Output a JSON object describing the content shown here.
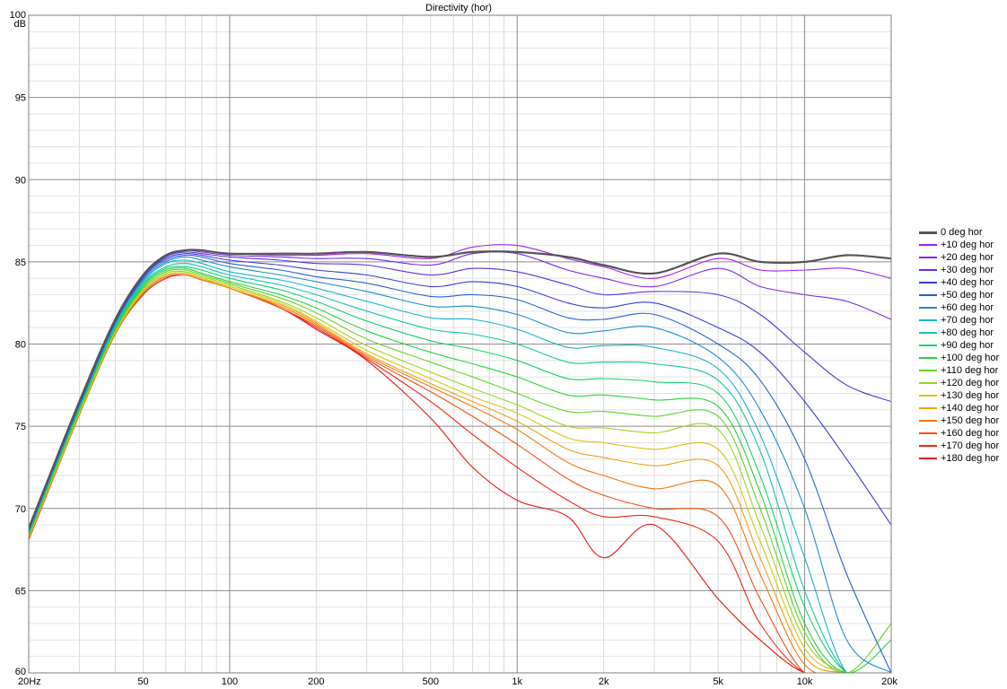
{
  "chart_data": {
    "type": "line",
    "title": "Directivity (hor)",
    "ylabel": "dB",
    "xlabel": "",
    "x_scale": "log",
    "xlim": [
      20,
      20000
    ],
    "ylim": [
      60,
      100
    ],
    "grid": true,
    "legend_position": "right",
    "x_ticks": [
      {
        "value": 20,
        "label": "20Hz"
      },
      {
        "value": 50,
        "label": "50"
      },
      {
        "value": 100,
        "label": "100"
      },
      {
        "value": 200,
        "label": "200"
      },
      {
        "value": 500,
        "label": "500"
      },
      {
        "value": 1000,
        "label": "1k"
      },
      {
        "value": 2000,
        "label": "2k"
      },
      {
        "value": 5000,
        "label": "5k"
      },
      {
        "value": 10000,
        "label": "10k"
      },
      {
        "value": 20000,
        "label": "20k"
      }
    ],
    "y_ticks": [
      {
        "value": 100,
        "label": "100"
      },
      {
        "value": 95,
        "label": "95"
      },
      {
        "value": 90,
        "label": "90"
      },
      {
        "value": 85,
        "label": "85"
      },
      {
        "value": 80,
        "label": "80"
      },
      {
        "value": 75,
        "label": "75"
      },
      {
        "value": 70,
        "label": "70"
      },
      {
        "value": 65,
        "label": "65"
      },
      {
        "value": 60,
        "label": "60"
      }
    ],
    "x": [
      20,
      30,
      40,
      50,
      60,
      70,
      80,
      100,
      150,
      200,
      300,
      500,
      700,
      1000,
      1500,
      2000,
      3000,
      5000,
      7000,
      10000,
      14000,
      20000
    ],
    "series": [
      {
        "name": "0 deg hor",
        "color": "#555555",
        "values": [
          68.8,
          76.5,
          81.5,
          84.2,
          85.4,
          85.7,
          85.7,
          85.5,
          85.5,
          85.5,
          85.6,
          85.3,
          85.6,
          85.6,
          85.3,
          84.8,
          84.3,
          85.5,
          85.0,
          85.0,
          85.4,
          85.2
        ]
      },
      {
        "name": "+10 deg hor",
        "color": "#a020f0",
        "values": [
          68.8,
          76.5,
          81.5,
          84.2,
          85.4,
          85.7,
          85.7,
          85.5,
          85.4,
          85.4,
          85.5,
          85.2,
          85.9,
          86.0,
          85.2,
          84.7,
          84.0,
          85.2,
          84.5,
          84.5,
          84.6,
          84.0
        ]
      },
      {
        "name": "+20 deg hor",
        "color": "#7d28e6",
        "values": [
          68.8,
          76.5,
          81.5,
          84.2,
          85.4,
          85.7,
          85.6,
          85.4,
          85.3,
          85.2,
          85.2,
          84.8,
          85.5,
          85.5,
          84.5,
          84.0,
          83.5,
          84.6,
          83.5,
          83.0,
          82.6,
          81.5
        ]
      },
      {
        "name": "+30 deg hor",
        "color": "#5a32dc",
        "values": [
          68.7,
          76.4,
          81.4,
          84.1,
          85.3,
          85.6,
          85.5,
          85.3,
          85.1,
          84.9,
          84.8,
          84.2,
          84.6,
          84.4,
          83.6,
          83.0,
          83.2,
          83.0,
          81.8,
          79.5,
          77.5,
          76.5
        ]
      },
      {
        "name": "+40 deg hor",
        "color": "#3a3cd2",
        "values": [
          68.7,
          76.4,
          81.4,
          84.1,
          85.2,
          85.5,
          85.4,
          85.1,
          84.8,
          84.5,
          84.2,
          83.5,
          83.8,
          83.5,
          82.5,
          82.2,
          82.5,
          81.0,
          79.5,
          76.5,
          73.0,
          69.0
        ]
      },
      {
        "name": "+50 deg hor",
        "color": "#2860d0",
        "values": [
          68.7,
          76.3,
          81.3,
          84.0,
          85.1,
          85.4,
          85.3,
          84.9,
          84.5,
          84.1,
          83.7,
          82.9,
          83.0,
          82.7,
          81.6,
          81.5,
          81.8,
          80.0,
          77.8,
          73.0,
          66.0,
          60.0
        ]
      },
      {
        "name": "+60 deg hor",
        "color": "#1e8cd0",
        "values": [
          68.6,
          76.3,
          81.3,
          83.9,
          85.0,
          85.3,
          85.1,
          84.7,
          84.2,
          83.8,
          83.2,
          82.3,
          82.3,
          81.8,
          80.7,
          80.8,
          81.0,
          79.2,
          76.0,
          70.0,
          62.0,
          60.0
        ]
      },
      {
        "name": "+70 deg hor",
        "color": "#14b4c8",
        "values": [
          68.6,
          76.2,
          81.2,
          83.8,
          84.9,
          85.1,
          84.9,
          84.4,
          83.9,
          83.4,
          82.6,
          81.6,
          81.5,
          80.9,
          79.8,
          79.9,
          79.8,
          78.5,
          74.5,
          67.0,
          60.0,
          60.0
        ]
      },
      {
        "name": "+80 deg hor",
        "color": "#14c8a0",
        "values": [
          68.5,
          76.2,
          81.1,
          83.7,
          84.7,
          84.9,
          84.7,
          84.2,
          83.6,
          83.0,
          82.0,
          80.9,
          80.6,
          80.0,
          78.9,
          78.9,
          78.8,
          77.8,
          73.5,
          65.0,
          60.0,
          60.0
        ]
      },
      {
        "name": "+90 deg hor",
        "color": "#14d26e",
        "values": [
          68.5,
          76.1,
          81.0,
          83.6,
          84.6,
          84.7,
          84.5,
          84.0,
          83.3,
          82.6,
          81.4,
          80.2,
          79.7,
          79.0,
          77.9,
          77.9,
          77.7,
          77.0,
          72.0,
          64.0,
          60.0,
          60.0
        ]
      },
      {
        "name": "+100 deg hor",
        "color": "#28d23c",
        "values": [
          68.4,
          76.0,
          80.9,
          83.5,
          84.5,
          84.6,
          84.3,
          83.8,
          83.0,
          82.2,
          80.8,
          79.5,
          78.8,
          78.0,
          76.9,
          76.9,
          76.6,
          76.2,
          71.0,
          63.0,
          60.0,
          62.0
        ]
      },
      {
        "name": "+110 deg hor",
        "color": "#64d228",
        "values": [
          68.4,
          76.0,
          80.9,
          83.4,
          84.4,
          84.5,
          84.2,
          83.7,
          82.8,
          81.9,
          80.3,
          78.9,
          78.0,
          77.0,
          75.9,
          75.9,
          75.6,
          75.6,
          70.0,
          62.5,
          60.0,
          63.0
        ]
      },
      {
        "name": "+120 deg hor",
        "color": "#a0d21e",
        "values": [
          68.3,
          75.9,
          80.8,
          83.3,
          84.3,
          84.4,
          84.1,
          83.6,
          82.6,
          81.6,
          79.9,
          78.3,
          77.3,
          76.3,
          75.0,
          74.9,
          74.6,
          74.8,
          69.0,
          62.0,
          60.0,
          60.0
        ]
      },
      {
        "name": "+130 deg hor",
        "color": "#d2c814",
        "values": [
          68.3,
          75.8,
          80.7,
          83.2,
          84.2,
          84.3,
          84.0,
          83.5,
          82.5,
          81.4,
          79.6,
          77.9,
          76.8,
          75.8,
          74.3,
          74.0,
          73.6,
          73.6,
          68.0,
          61.5,
          60.0,
          60.0
        ]
      },
      {
        "name": "+140 deg hor",
        "color": "#f0a014",
        "values": [
          68.2,
          75.8,
          80.7,
          83.2,
          84.2,
          84.3,
          84.0,
          83.4,
          82.4,
          81.3,
          79.4,
          77.6,
          76.5,
          75.3,
          73.6,
          73.1,
          72.6,
          72.6,
          67.0,
          61.0,
          60.0,
          60.0
        ]
      },
      {
        "name": "+150 deg hor",
        "color": "#f07814",
        "values": [
          68.2,
          75.7,
          80.6,
          83.1,
          84.1,
          84.2,
          83.9,
          83.4,
          82.3,
          81.2,
          79.3,
          77.4,
          76.2,
          74.8,
          72.8,
          72.0,
          71.2,
          71.4,
          66.0,
          60.5,
          60.0,
          60.0
        ]
      },
      {
        "name": "+160 deg hor",
        "color": "#f05014",
        "values": [
          68.1,
          75.7,
          80.6,
          83.1,
          84.1,
          84.2,
          83.9,
          83.4,
          82.2,
          81.1,
          79.2,
          77.1,
          75.6,
          73.9,
          71.8,
          70.8,
          70.0,
          69.5,
          64.5,
          60.0,
          60.0,
          60.0
        ]
      },
      {
        "name": "+170 deg hor",
        "color": "#f02814",
        "values": [
          68.1,
          75.7,
          80.6,
          83.0,
          84.0,
          84.2,
          83.9,
          83.4,
          82.2,
          81.0,
          79.1,
          76.5,
          74.5,
          72.5,
          70.5,
          69.5,
          69.5,
          68.0,
          63.0,
          60.0,
          60.0,
          60.0
        ]
      },
      {
        "name": "+180 deg hor",
        "color": "#e61414",
        "values": [
          68.1,
          75.7,
          80.6,
          83.0,
          84.0,
          84.2,
          83.9,
          83.4,
          82.2,
          80.9,
          79.0,
          75.5,
          72.5,
          70.5,
          69.5,
          67.0,
          69.0,
          64.5,
          62.0,
          60.0,
          60.0,
          60.0
        ]
      }
    ]
  }
}
